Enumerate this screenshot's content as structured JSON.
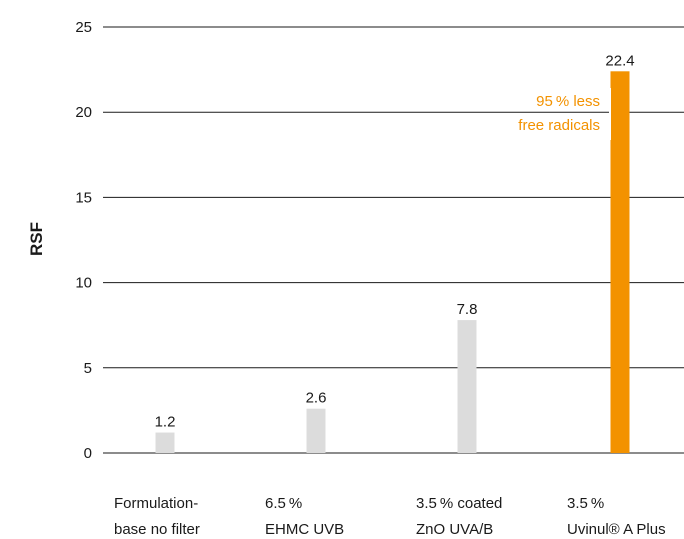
{
  "chart_data": {
    "type": "bar",
    "ylabel": "RSF",
    "ylim": [
      0,
      25
    ],
    "yticks": [
      0,
      5,
      10,
      15,
      20,
      25
    ],
    "grid": true,
    "categories": [
      {
        "lines": [
          "Formulation-",
          "base no filter"
        ]
      },
      {
        "lines": [
          "6.5 %",
          "EHMC UVB"
        ]
      },
      {
        "lines": [
          "3.5 % coated",
          "ZnO UVA/B"
        ]
      },
      {
        "lines": [
          "3.5 %",
          "Uvinul® A Plus"
        ]
      }
    ],
    "values": [
      1.2,
      2.6,
      7.8,
      22.4
    ],
    "data_labels": [
      "1.2",
      "2.6",
      "7.8",
      "22.4"
    ],
    "bar_colors": [
      "#dcdcdc",
      "#dcdcdc",
      "#dcdcdc",
      "#f39200"
    ],
    "annotation": {
      "lines": [
        "95 % less",
        "free radicals"
      ],
      "color": "#f39200"
    }
  }
}
